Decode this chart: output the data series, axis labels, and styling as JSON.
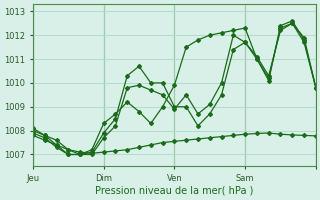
{
  "title": "",
  "xlabel": "Pression niveau de la mer( hPa )",
  "ylabel": "",
  "bg_color": "#d8f0e8",
  "grid_color": "#b0d8c8",
  "line_color": "#1a6b1a",
  "ylim": [
    1006.5,
    1013.3
  ],
  "yticks": [
    1007,
    1008,
    1009,
    1010,
    1011,
    1012,
    1013
  ],
  "day_positions": [
    0,
    6,
    12,
    18,
    24
  ],
  "day_labels": [
    "Jeu",
    "Dim",
    "Ven",
    "Sam"
  ],
  "series1": {
    "x": [
      0,
      1,
      2,
      3,
      4,
      5,
      6,
      7,
      8,
      9,
      10,
      11,
      12,
      13,
      14,
      15,
      16,
      17,
      18,
      19,
      20,
      21,
      22,
      23,
      24
    ],
    "y": [
      1008.1,
      1007.8,
      1007.6,
      1007.2,
      1007.0,
      1007.2,
      1008.3,
      1008.7,
      1009.2,
      1008.8,
      1008.3,
      1009.0,
      1009.9,
      1011.5,
      1011.8,
      1012.0,
      1012.1,
      1012.2,
      1012.3,
      1011.0,
      1010.1,
      1012.4,
      1012.6,
      1011.8,
      1009.8
    ]
  },
  "series2": {
    "x": [
      0,
      1,
      2,
      3,
      4,
      5,
      6,
      7,
      8,
      9,
      10,
      11,
      12,
      13,
      14,
      15,
      16,
      17,
      18,
      19,
      20,
      21,
      22,
      23,
      24
    ],
    "y": [
      1008.0,
      1007.8,
      1007.4,
      1007.0,
      1007.0,
      1007.1,
      1007.9,
      1008.5,
      1010.3,
      1010.7,
      1010.0,
      1010.0,
      1009.0,
      1009.0,
      1008.2,
      1008.7,
      1009.5,
      1011.4,
      1011.7,
      1011.0,
      1010.2,
      1012.3,
      1012.5,
      1011.9,
      1009.8
    ]
  },
  "series3": {
    "x": [
      0,
      1,
      2,
      3,
      4,
      5,
      6,
      7,
      8,
      9,
      10,
      11,
      12,
      13,
      14,
      15,
      16,
      17,
      18,
      19,
      20,
      21,
      22,
      23,
      24
    ],
    "y": [
      1007.9,
      1007.7,
      1007.3,
      1007.0,
      1007.0,
      1007.0,
      1007.7,
      1008.2,
      1009.8,
      1009.9,
      1009.7,
      1009.5,
      1008.9,
      1009.5,
      1008.7,
      1009.1,
      1010.0,
      1012.0,
      1011.7,
      1011.1,
      1010.3,
      1012.2,
      1012.5,
      1011.7,
      1009.8
    ]
  },
  "series4": {
    "x": [
      0,
      1,
      2,
      3,
      4,
      5,
      6,
      7,
      8,
      9,
      10,
      11,
      12,
      13,
      14,
      15,
      16,
      17,
      18,
      19,
      20,
      21,
      22,
      23,
      24
    ],
    "y": [
      1007.8,
      1007.6,
      1007.4,
      1007.2,
      1007.1,
      1007.05,
      1007.1,
      1007.15,
      1007.2,
      1007.3,
      1007.4,
      1007.5,
      1007.55,
      1007.6,
      1007.65,
      1007.7,
      1007.75,
      1007.8,
      1007.85,
      1007.88,
      1007.9,
      1007.85,
      1007.82,
      1007.8,
      1007.78
    ]
  }
}
